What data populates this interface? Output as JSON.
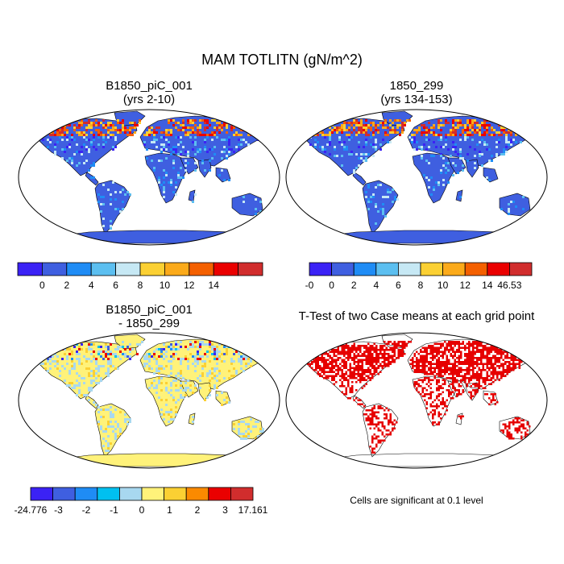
{
  "title": "MAM TOTLITN (gN/m^2)",
  "panels": [
    {
      "line1": "B1850_piC_001",
      "line2": "(yrs 2-10)",
      "style": "field"
    },
    {
      "line1": "1850_299",
      "line2": "(yrs 134-153)",
      "style": "field"
    },
    {
      "line1": "B1850_piC_001",
      "line2": "- 1850_299",
      "style": "diff"
    },
    {
      "line1": "T-Test of two Case means at each grid point",
      "line2": "",
      "style": "ttest"
    }
  ],
  "colorbars": [
    {
      "colors": [
        "#3b22f5",
        "#3f5fe0",
        "#1f8cf5",
        "#5cbff0",
        "#c6e8f4",
        "#fbd033",
        "#fbaa1a",
        "#f46000",
        "#ea0000",
        "#d12d2d"
      ],
      "labels": [
        "0",
        "2",
        "4",
        "6",
        "8",
        "10",
        "12",
        "14"
      ]
    },
    {
      "colors": [
        "#3b22f5",
        "#3f5fe0",
        "#1f8cf5",
        "#5cbff0",
        "#c6e8f4",
        "#fbd033",
        "#fbaa1a",
        "#f46000",
        "#ea0000",
        "#d12d2d"
      ],
      "labels": [
        "-0",
        "0",
        "2",
        "4",
        "6",
        "8",
        "10",
        "12",
        "14",
        "46.53"
      ]
    },
    {
      "colors": [
        "#3b22f5",
        "#3f5fe0",
        "#1f8cf5",
        "#00c0f0",
        "#a8d8f0",
        "#fff27a",
        "#fbd033",
        "#fb8a00",
        "#ea0000",
        "#d12d2d"
      ],
      "labels": [
        "-24.776",
        "-3",
        "-2",
        "-1",
        "0",
        "1",
        "2",
        "3",
        "17.161"
      ]
    }
  ],
  "significance_note": "Cells are significant at 0.1 level",
  "colors": {
    "land_field": "#3f5fe0",
    "land_diff": "#fff27a",
    "sig": "#e60000",
    "frame": "#000000"
  }
}
